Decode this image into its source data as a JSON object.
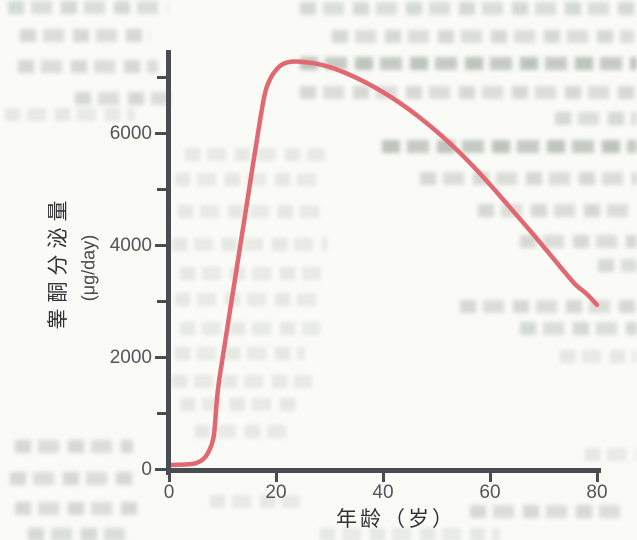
{
  "chart_data": {
    "type": "line",
    "title": "",
    "xlabel": "年龄（岁）",
    "ylabel": "睾酮分泌量（μg/day）",
    "xlim": [
      0,
      80
    ],
    "ylim": [
      0,
      7500
    ],
    "x_ticks": [
      0,
      20,
      40,
      60,
      80
    ],
    "x_tick_labels": [
      "0",
      "20",
      "40",
      "60",
      "80"
    ],
    "y_ticks": [
      0,
      2000,
      4000,
      6000
    ],
    "y_tick_labels": [
      "0",
      "2000",
      "4000",
      "6000"
    ],
    "y_minor_ticks": [
      1000,
      3000,
      5000,
      7000
    ],
    "grid": false,
    "legend": "none",
    "line_color": "#e16871",
    "axis_color": "#4b4b52",
    "x": [
      0,
      2,
      4,
      5,
      6,
      7,
      8,
      8.5,
      9,
      10,
      11,
      12,
      13,
      14,
      15,
      16,
      17,
      18,
      19,
      20,
      21,
      22,
      23,
      24,
      26,
      28,
      30,
      32,
      34,
      36,
      38,
      40,
      42,
      44,
      46,
      48,
      50,
      52,
      54,
      56,
      58,
      60,
      62,
      64,
      66,
      68,
      70,
      72,
      74,
      76,
      78,
      80
    ],
    "series": [
      {
        "name": "睾酮分泌量",
        "values": [
          80,
          85,
          95,
          110,
          150,
          240,
          430,
          640,
          1370,
          1980,
          2590,
          3200,
          3800,
          4410,
          5020,
          5630,
          6230,
          6780,
          7000,
          7140,
          7230,
          7270,
          7285,
          7285,
          7270,
          7240,
          7190,
          7120,
          7040,
          6950,
          6850,
          6740,
          6620,
          6490,
          6350,
          6200,
          6040,
          5870,
          5690,
          5500,
          5300,
          5090,
          4870,
          4650,
          4430,
          4210,
          3980,
          3750,
          3520,
          3290,
          3150,
          2940
        ]
      }
    ]
  },
  "labels": {
    "y_axis_title": "睾酮分泌量",
    "y_axis_unit": "(μg/day)",
    "x_axis_title": "年龄（岁）"
  }
}
